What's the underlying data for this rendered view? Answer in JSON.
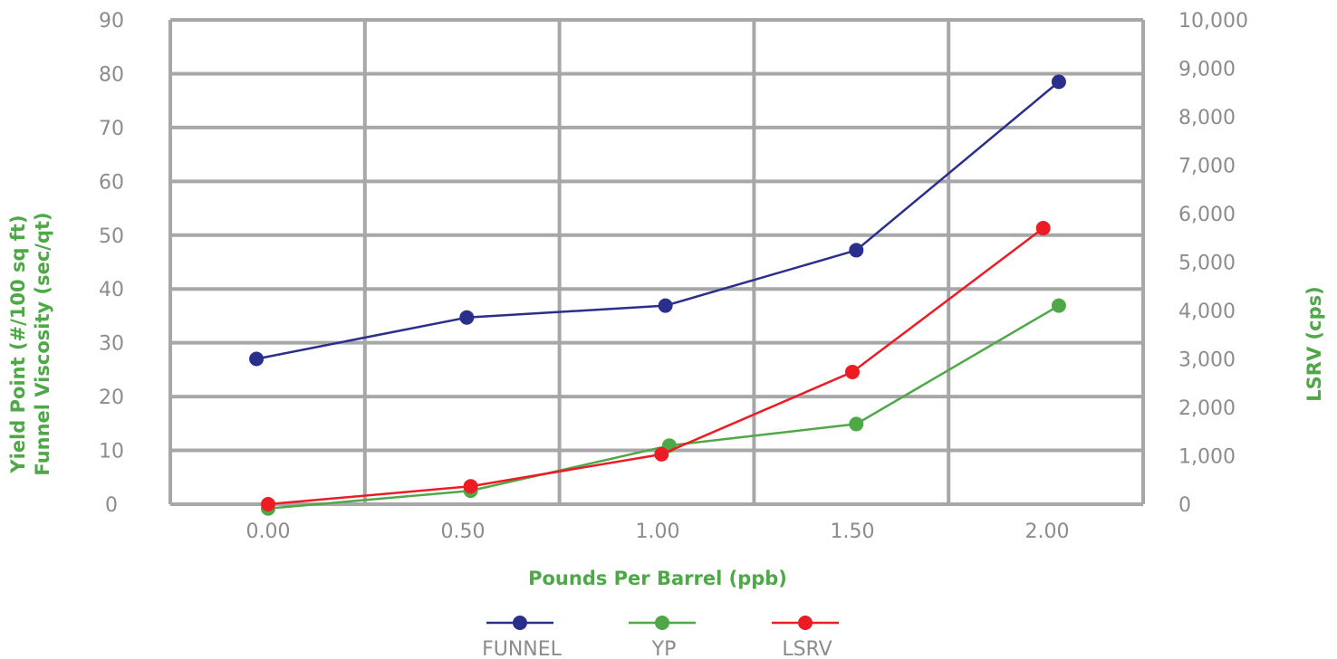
{
  "chart_data": {
    "type": "line",
    "x": [
      0,
      0.5,
      1.0,
      1.5,
      2.0
    ],
    "x_tick_labels": [
      "0.00",
      "0.50",
      "1.00",
      "1.50",
      "2.00"
    ],
    "xlabel": "Pounds Per Barrel (ppb)",
    "ylabel_left": [
      "Yield Point (#/100 sq ft)",
      "Funnel Viscosity (sec/qt)"
    ],
    "ylabel_right": "LSRV (cps)",
    "ylim_left": [
      0,
      90
    ],
    "ylim_right": [
      0,
      10000
    ],
    "y_ticks_left": [
      "0",
      "10",
      "20",
      "30",
      "40",
      "50",
      "60",
      "70",
      "80",
      "90"
    ],
    "y_ticks_right": [
      "0",
      "1,000",
      "2,000",
      "3,000",
      "4,000",
      "5,000",
      "6,000",
      "7,000",
      "8,000",
      "9,000",
      "10,000"
    ],
    "grid": true,
    "legend_position": "bottom",
    "series": [
      {
        "name": "FUNNEL",
        "axis": "left",
        "color": "#2b2f8c",
        "x": [
          -0.03,
          0.51,
          1.02,
          1.51,
          2.03
        ],
        "values": [
          27,
          34.7,
          36.9,
          47.2,
          78.5
        ]
      },
      {
        "name": "YP",
        "axis": "left",
        "color": "#4fa847",
        "x": [
          0.0,
          0.52,
          1.03,
          1.51,
          2.03
        ],
        "values": [
          -0.8,
          2.5,
          10.9,
          14.9,
          36.9
        ]
      },
      {
        "name": "LSRV",
        "axis": "right",
        "color": "#ed1c24",
        "x": [
          0.0,
          0.52,
          1.01,
          1.5,
          1.99
        ],
        "values": [
          0,
          370,
          1030,
          2730,
          5700
        ]
      }
    ]
  }
}
